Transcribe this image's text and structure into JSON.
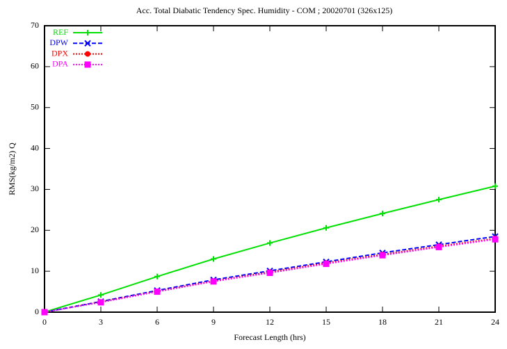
{
  "chart_data": {
    "type": "line",
    "title": "Acc. Total Diabatic Tendency Spec. Humidity - COM ; 20020701 (326x125)",
    "x_label": "Forecast Length (hrs)",
    "y_label": "RMS(kg/m2) Q",
    "x": [
      0,
      3,
      6,
      9,
      12,
      15,
      18,
      21,
      24
    ],
    "xlim": [
      0,
      24
    ],
    "xticks": [
      0,
      3,
      6,
      9,
      12,
      15,
      18,
      21,
      24
    ],
    "ylim": [
      0,
      70
    ],
    "yticks": [
      0,
      10,
      20,
      30,
      40,
      50,
      60,
      70
    ],
    "legend": "upper left",
    "series": [
      {
        "name": "REF",
        "color": "#00e000",
        "values": [
          0,
          4.2,
          8.7,
          13.0,
          16.9,
          20.6,
          24.1,
          27.5,
          30.8
        ]
      },
      {
        "name": "DPW",
        "color": "#0000ff",
        "values": [
          0,
          2.6,
          5.3,
          7.9,
          10.1,
          12.3,
          14.5,
          16.5,
          18.5
        ]
      },
      {
        "name": "DPX",
        "color": "#ff0000",
        "values": [
          0,
          2.5,
          5.1,
          7.6,
          9.8,
          12.0,
          14.1,
          16.1,
          18.0
        ]
      },
      {
        "name": "DPA",
        "color": "#ff00ff",
        "values": [
          0,
          2.4,
          5.0,
          7.5,
          9.6,
          11.8,
          13.9,
          15.9,
          17.8
        ]
      }
    ]
  }
}
